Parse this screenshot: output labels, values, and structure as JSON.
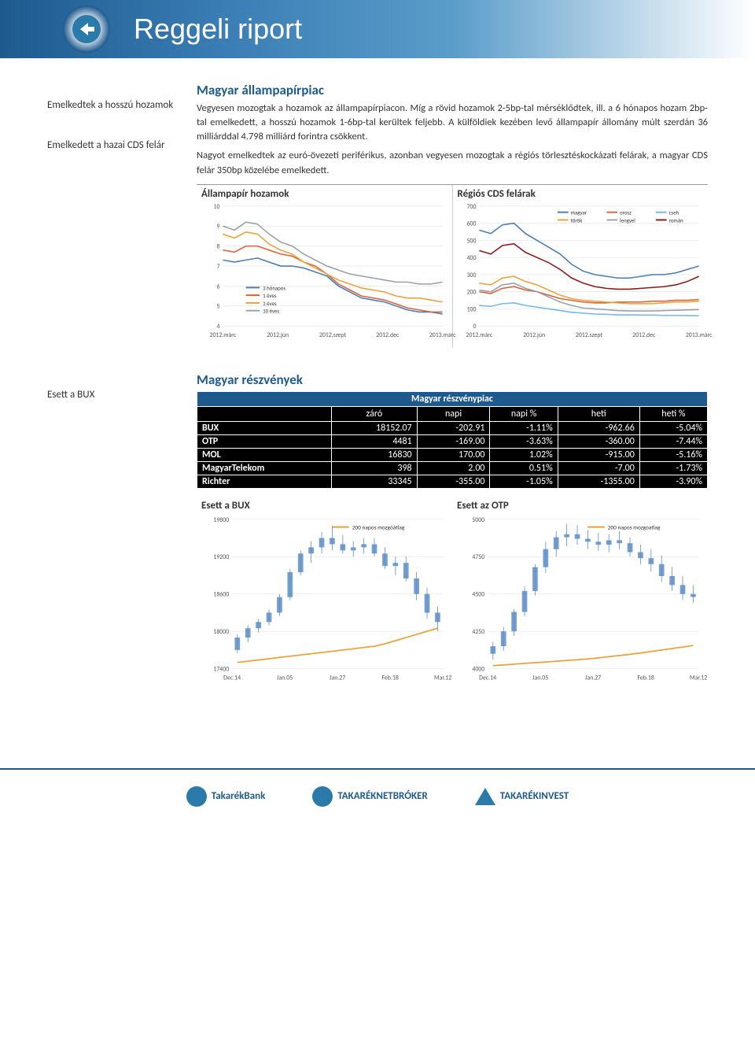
{
  "header": {
    "title": "Reggeli riport"
  },
  "sidebar": {
    "items": [
      {
        "label": "Emelkedtek a hosszú hozamok"
      },
      {
        "label": "Emelkedett a hazai CDS felár"
      },
      {
        "label": "Esett a BUX"
      }
    ]
  },
  "section1": {
    "title": "Magyar állampapírpiac",
    "para1": "Vegyesen mozogtak a hozamok az állampapírpiacon. Míg a rövid hozamok 2-5bp-tal mérséklődtek, ill. a 6 hónapos hozam 2bp-tal emelkedett, a hosszú hozamok 1-6bp-tal kerültek feljebb. A külföldiek kezében levő állampapír állomány múlt szerdán 36 milliárddal 4.798 milliárd forintra csökkent.",
    "para2": "Nagyot emelkedtek az euró-övezeti periférikus, azonban vegyesen mozogtak a régiós törlesztéskockázati felárak, a magyar CDS felár 350bp közelébe emelkedett."
  },
  "chart_yields": {
    "title": "Állampapír hozamok",
    "type": "line",
    "x_labels": [
      "2012.márc",
      "2012.jún",
      "2012.szept",
      "2012.dec",
      "2013.márc"
    ],
    "ylim": [
      4,
      10
    ],
    "ytick_step": 1,
    "series": [
      {
        "name": "3 hónapos",
        "color": "#4a7cb8",
        "values": [
          7.3,
          7.2,
          7.3,
          7.4,
          7.2,
          7.0,
          7.0,
          6.9,
          6.7,
          6.5,
          6.0,
          5.7,
          5.4,
          5.3,
          5.2,
          5.0,
          4.8,
          4.7,
          4.7,
          4.6
        ]
      },
      {
        "name": "1 éves",
        "color": "#d9623a",
        "values": [
          7.8,
          7.7,
          8.0,
          8.0,
          7.8,
          7.6,
          7.5,
          7.2,
          7.0,
          6.6,
          6.1,
          5.8,
          5.5,
          5.4,
          5.3,
          5.1,
          4.9,
          4.8,
          4.7,
          4.7
        ]
      },
      {
        "name": "3 éves",
        "color": "#e8a33d",
        "values": [
          8.6,
          8.4,
          8.7,
          8.6,
          8.1,
          7.8,
          7.6,
          7.2,
          6.9,
          6.6,
          6.3,
          6.1,
          5.9,
          5.8,
          5.7,
          5.5,
          5.4,
          5.4,
          5.3,
          5.2
        ]
      },
      {
        "name": "10 éves",
        "color": "#9aa0a6",
        "values": [
          9.0,
          8.8,
          9.2,
          9.1,
          8.6,
          8.2,
          8.0,
          7.6,
          7.3,
          7.0,
          6.8,
          6.6,
          6.5,
          6.4,
          6.3,
          6.2,
          6.2,
          6.1,
          6.1,
          6.2
        ]
      }
    ],
    "legend_pos": "inside-left",
    "label_fontsize": 7,
    "tick_fontsize": 8,
    "grid_color": "#d9d9d9",
    "background_color": "#ffffff"
  },
  "chart_cds": {
    "title": "Régiós CDS felárak",
    "type": "line",
    "x_labels": [
      "2012.márc",
      "2012.jún",
      "2012.szept",
      "2012.dec",
      "2013.márc"
    ],
    "ylim": [
      0,
      700
    ],
    "ytick_step": 100,
    "series": [
      {
        "name": "magyar",
        "color": "#4a7cb8",
        "values": [
          560,
          540,
          590,
          600,
          540,
          500,
          460,
          420,
          360,
          320,
          300,
          290,
          280,
          280,
          290,
          300,
          300,
          310,
          330,
          350
        ]
      },
      {
        "name": "orosz",
        "color": "#d9623a",
        "values": [
          200,
          190,
          220,
          230,
          210,
          200,
          180,
          160,
          150,
          140,
          135,
          135,
          140,
          140,
          140,
          145,
          145,
          150,
          150,
          155
        ]
      },
      {
        "name": "cseh",
        "color": "#76b7e8",
        "values": [
          120,
          115,
          130,
          135,
          120,
          110,
          100,
          90,
          80,
          75,
          70,
          68,
          65,
          65,
          64,
          64,
          62,
          62,
          61,
          60
        ]
      },
      {
        "name": "török",
        "color": "#e8a33d",
        "values": [
          250,
          240,
          280,
          290,
          260,
          240,
          210,
          180,
          160,
          150,
          145,
          140,
          135,
          130,
          130,
          130,
          135,
          140,
          140,
          145
        ]
      },
      {
        "name": "lengyel",
        "color": "#9aa0a6",
        "values": [
          210,
          200,
          240,
          250,
          220,
          200,
          170,
          140,
          120,
          105,
          100,
          95,
          90,
          88,
          88,
          88,
          90,
          92,
          94,
          96
        ]
      },
      {
        "name": "román",
        "color": "#8b1a1a",
        "values": [
          440,
          420,
          470,
          480,
          430,
          400,
          370,
          330,
          280,
          250,
          230,
          220,
          215,
          215,
          220,
          225,
          230,
          240,
          260,
          290
        ]
      }
    ],
    "legend_pos": "top-right",
    "label_fontsize": 7,
    "tick_fontsize": 8,
    "grid_color": "#d9d9d9",
    "background_color": "#ffffff"
  },
  "section2": {
    "title": "Magyar részvények"
  },
  "stock_table": {
    "title": "Magyar részvénypiac",
    "columns": [
      "",
      "záró",
      "napi",
      "napi %",
      "heti",
      "heti %"
    ],
    "rows": [
      [
        "BUX",
        "18152.07",
        "-202.91",
        "-1.11%",
        "-962.66",
        "-5.04%"
      ],
      [
        "OTP",
        "4481",
        "-169.00",
        "-3.63%",
        "-360.00",
        "-7.44%"
      ],
      [
        "MOL",
        "16830",
        "170.00",
        "1.02%",
        "-915.00",
        "-5.16%"
      ],
      [
        "MagyarTelekom",
        "398",
        "2.00",
        "0.51%",
        "-7.00",
        "-1.73%"
      ],
      [
        "Richter",
        "33345",
        "-355.00",
        "-1.05%",
        "-1355.00",
        "-3.90%"
      ]
    ]
  },
  "chart_bux": {
    "title": "Esett a BUX",
    "type": "candlestick",
    "x_labels": [
      "Dec.14",
      "Jan.05",
      "Jan.27",
      "Feb.18",
      "Mar.12"
    ],
    "ylim": [
      17400,
      19800
    ],
    "ytick_step": 600,
    "ma_label": "200 napos mozgóátlag",
    "ma_color": "#e8a33d",
    "ma_values": [
      17500,
      17520,
      17540,
      17560,
      17580,
      17600,
      17620,
      17640,
      17660,
      17680,
      17700,
      17720,
      17740,
      17760,
      17800,
      17850,
      17900,
      17950,
      18000,
      18050
    ],
    "candle_color": "#5a8dc4",
    "candles": [
      [
        17700,
        17950,
        17650,
        17900
      ],
      [
        17900,
        18100,
        17820,
        18050
      ],
      [
        18050,
        18200,
        17980,
        18150
      ],
      [
        18150,
        18350,
        18100,
        18300
      ],
      [
        18300,
        18600,
        18250,
        18550
      ],
      [
        18550,
        19000,
        18500,
        18950
      ],
      [
        18950,
        19300,
        18900,
        19250
      ],
      [
        19250,
        19450,
        19100,
        19350
      ],
      [
        19350,
        19600,
        19250,
        19500
      ],
      [
        19500,
        19700,
        19300,
        19400
      ],
      [
        19400,
        19550,
        19250,
        19300
      ],
      [
        19300,
        19450,
        19200,
        19350
      ],
      [
        19350,
        19500,
        19250,
        19400
      ],
      [
        19400,
        19500,
        19200,
        19250
      ],
      [
        19250,
        19350,
        19000,
        19050
      ],
      [
        19050,
        19200,
        18900,
        19100
      ],
      [
        19100,
        19200,
        18800,
        18850
      ],
      [
        18850,
        18950,
        18500,
        18600
      ],
      [
        18600,
        18700,
        18200,
        18300
      ],
      [
        18300,
        18400,
        18000,
        18150
      ]
    ],
    "tick_fontsize": 8,
    "grid_color": "#e3e3e3",
    "background_color": "#ffffff"
  },
  "chart_otp": {
    "title": "Esett az OTP",
    "type": "candlestick",
    "x_labels": [
      "Dec.14",
      "Jan.05",
      "Jan.27",
      "Feb.18",
      "Mar.12"
    ],
    "ylim": [
      4000,
      5000
    ],
    "ytick_step": 250,
    "ma_label": "200 napos mozgoatlag",
    "ma_color": "#e8a33d",
    "ma_values": [
      4020,
      4025,
      4030,
      4035,
      4040,
      4045,
      4050,
      4055,
      4060,
      4065,
      4072,
      4080,
      4088,
      4096,
      4105,
      4115,
      4125,
      4135,
      4145,
      4155
    ],
    "candle_color": "#5a8dc4",
    "candles": [
      [
        4100,
        4180,
        4060,
        4150
      ],
      [
        4150,
        4280,
        4120,
        4250
      ],
      [
        4250,
        4400,
        4220,
        4380
      ],
      [
        4380,
        4550,
        4350,
        4520
      ],
      [
        4520,
        4700,
        4490,
        4680
      ],
      [
        4680,
        4850,
        4640,
        4800
      ],
      [
        4800,
        4920,
        4750,
        4880
      ],
      [
        4880,
        4970,
        4820,
        4900
      ],
      [
        4900,
        4960,
        4830,
        4870
      ],
      [
        4870,
        4930,
        4800,
        4850
      ],
      [
        4850,
        4910,
        4790,
        4830
      ],
      [
        4830,
        4900,
        4780,
        4860
      ],
      [
        4860,
        4920,
        4800,
        4840
      ],
      [
        4840,
        4880,
        4750,
        4780
      ],
      [
        4780,
        4830,
        4700,
        4740
      ],
      [
        4740,
        4800,
        4650,
        4700
      ],
      [
        4700,
        4760,
        4580,
        4620
      ],
      [
        4620,
        4680,
        4520,
        4560
      ],
      [
        4560,
        4620,
        4460,
        4500
      ],
      [
        4500,
        4560,
        4440,
        4480
      ]
    ],
    "tick_fontsize": 8,
    "grid_color": "#e3e3e3",
    "background_color": "#ffffff"
  },
  "footer": {
    "logos": [
      "TakarékBank",
      "TAKARÉKNETBRÓKER",
      "TAKARÉKINVEST"
    ]
  }
}
